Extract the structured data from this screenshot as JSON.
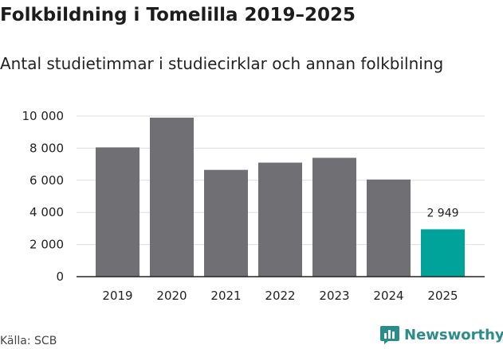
{
  "header": {
    "title": "Folkbildning i Tomelilla 2019–2025",
    "subtitle": "Antal studietimmar i studiecirklar och annan folkbilning"
  },
  "footer": {
    "source": "Källa: SCB",
    "brand": "Newsworthy",
    "brand_icon": "bar-chart-speech-icon"
  },
  "colors": {
    "bar": "#706f73",
    "highlight": "#00a39a",
    "grid": "#dddddd",
    "axis": "#222222",
    "brand": "#2b8c8c"
  },
  "chart_data": {
    "type": "bar",
    "title": "Folkbildning i Tomelilla 2019–2025",
    "subtitle": "Antal studietimmar i studiecirklar och annan folkbilning",
    "xlabel": "",
    "ylabel": "",
    "categories": [
      "2019",
      "2020",
      "2021",
      "2022",
      "2023",
      "2024",
      "2025"
    ],
    "values": [
      8050,
      9900,
      6650,
      7100,
      7400,
      6050,
      2949
    ],
    "highlight_index": 6,
    "data_labels": [
      {
        "index": 6,
        "text": "2 949"
      }
    ],
    "ylim": [
      0,
      10000
    ],
    "yticks": [
      0,
      2000,
      4000,
      6000,
      8000,
      10000
    ],
    "ytick_labels": [
      "0",
      "2 000",
      "4 000",
      "6 000",
      "8 000",
      "10 000"
    ],
    "grid": true
  }
}
